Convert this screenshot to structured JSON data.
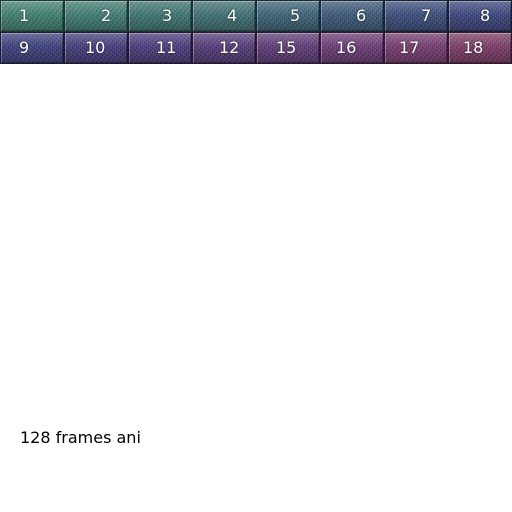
{
  "tiles": [
    {
      "number": "1",
      "color": "#3f7f6f"
    },
    {
      "number": "2",
      "color": "#3f7c72"
    },
    {
      "number": "3",
      "color": "#3c7471"
    },
    {
      "number": "4",
      "color": "#3e6f73"
    },
    {
      "number": "5",
      "color": "#3b6276"
    },
    {
      "number": "6",
      "color": "#3a5878"
    },
    {
      "number": "7",
      "color": "#3a4c7a"
    },
    {
      "number": "8",
      "color": "#3a447c"
    },
    {
      "number": "9",
      "color": "#3c3f7c"
    },
    {
      "number": "10",
      "color": "#423c7a"
    },
    {
      "number": "11",
      "color": "#4a3a7a"
    },
    {
      "number": "12",
      "color": "#523a78"
    },
    {
      "number": "15",
      "color": "#5e3a76"
    },
    {
      "number": "16",
      "color": "#6a3a74"
    },
    {
      "number": "17",
      "color": "#743a6e"
    },
    {
      "number": "18",
      "color": "#7a3a64"
    }
  ],
  "caption": "128 frames ani"
}
